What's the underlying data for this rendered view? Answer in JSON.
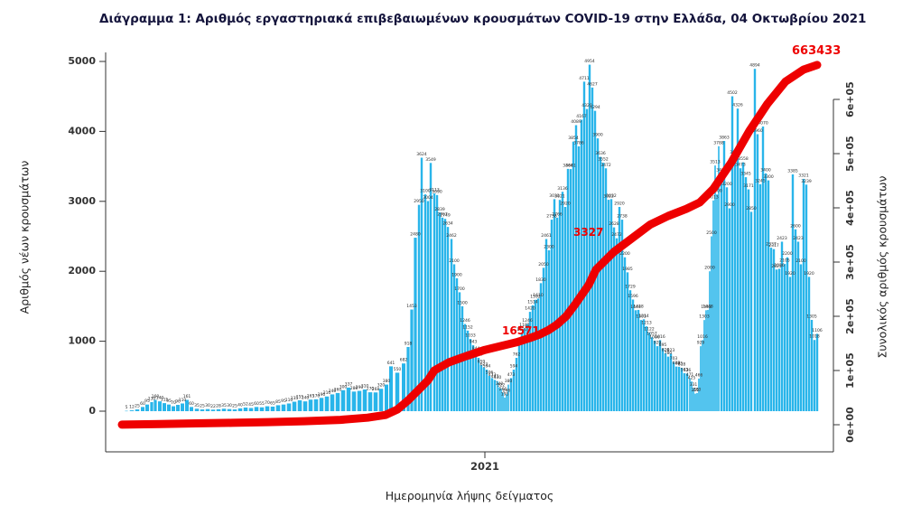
{
  "chart_data": {
    "type": "combo",
    "title": "Διάγραμμα 1: Αριθμός εργαστηριακά επιβεβαιωμένων κρουσμάτων COVID-19 στην Ελλάδα, 04 Οκτωβρίου 2021",
    "xlabel": "Ημερομηνία λήψης δείγματος",
    "x_ticks": [
      {
        "label": "2021",
        "x": 420
      }
    ],
    "x_domain": [
      0,
      788
    ],
    "grid": false,
    "left_axis": {
      "label": "Αριθμός νέων κρουσμάτων",
      "ticks": [
        0,
        1000,
        2000,
        3000,
        4000,
        5000
      ],
      "range": [
        0,
        5000
      ]
    },
    "right_axis": {
      "label": "Συνολικός αριθμός κρουσμάτων",
      "ticks": [
        {
          "label": "0e+00",
          "value": 0
        },
        {
          "label": "1e+05",
          "value": 100000
        },
        {
          "label": "2e+05",
          "value": 200000
        },
        {
          "label": "3e+05",
          "value": 300000
        },
        {
          "label": "4e+05",
          "value": 400000
        },
        {
          "label": "5e+05",
          "value": 500000
        },
        {
          "label": "6e+05",
          "value": 600000
        }
      ],
      "range": [
        0,
        600000
      ]
    },
    "series": [
      {
        "name": "daily-new-cases",
        "type": "bar",
        "axis": "left",
        "color": "#29b5ea",
        "sampling": "daily bars downsampled; values estimated from chart pixels",
        "points": [
          [
            23,
            5
          ],
          [
            29,
            12
          ],
          [
            35,
            25
          ],
          [
            41,
            60
          ],
          [
            46,
            95
          ],
          [
            51,
            130
          ],
          [
            55,
            160
          ],
          [
            60,
            140
          ],
          [
            65,
            115
          ],
          [
            70,
            95
          ],
          [
            75,
            70
          ],
          [
            80,
            90
          ],
          [
            85,
            110
          ],
          [
            90,
            161
          ],
          [
            95,
            60
          ],
          [
            101,
            35
          ],
          [
            107,
            25
          ],
          [
            113,
            30
          ],
          [
            119,
            22
          ],
          [
            125,
            28
          ],
          [
            131,
            35
          ],
          [
            137,
            30
          ],
          [
            143,
            25
          ],
          [
            149,
            40
          ],
          [
            155,
            52
          ],
          [
            161,
            45
          ],
          [
            167,
            60
          ],
          [
            173,
            55
          ],
          [
            179,
            70
          ],
          [
            185,
            65
          ],
          [
            191,
            85
          ],
          [
            197,
            95
          ],
          [
            203,
            110
          ],
          [
            209,
            135
          ],
          [
            215,
            155
          ],
          [
            221,
            140
          ],
          [
            227,
            165
          ],
          [
            233,
            170
          ],
          [
            239,
            190
          ],
          [
            245,
            210
          ],
          [
            251,
            240
          ],
          [
            257,
            260
          ],
          [
            263,
            300
          ],
          [
            269,
            337
          ],
          [
            275,
            280
          ],
          [
            281,
            290
          ],
          [
            287,
            310
          ],
          [
            293,
            270
          ],
          [
            299,
            268
          ],
          [
            305,
            320
          ],
          [
            311,
            380
          ],
          [
            316,
            641
          ],
          [
            323,
            550
          ],
          [
            330,
            682
          ],
          [
            335,
            918
          ],
          [
            339,
            1453
          ],
          [
            343,
            2480
          ],
          [
            347,
            2950
          ],
          [
            350,
            3624
          ],
          [
            354,
            3100
          ],
          [
            357,
            3004
          ],
          [
            360,
            3549
          ],
          [
            364,
            3113
          ],
          [
            367,
            3090
          ],
          [
            370,
            2839
          ],
          [
            373,
            2767
          ],
          [
            376,
            2749
          ],
          [
            379,
            2634
          ],
          [
            383,
            2462
          ],
          [
            386,
            2100
          ],
          [
            389,
            1900
          ],
          [
            392,
            1700
          ],
          [
            395,
            1500
          ],
          [
            398,
            1246
          ],
          [
            401,
            1152
          ],
          [
            404,
            1033
          ],
          [
            407,
            943
          ],
          [
            410,
            844
          ],
          [
            413,
            762
          ],
          [
            416,
            659
          ],
          [
            419,
            623
          ],
          [
            422,
            594
          ],
          [
            425,
            506
          ],
          [
            428,
            473
          ],
          [
            431,
            447
          ],
          [
            434,
            430
          ],
          [
            436,
            340
          ],
          [
            438,
            322
          ],
          [
            440,
            266
          ],
          [
            442,
            195
          ],
          [
            444,
            246
          ],
          [
            446,
            380
          ],
          [
            449,
            473
          ],
          [
            452,
            594
          ],
          [
            455,
            762
          ],
          [
            458,
            943
          ],
          [
            461,
            1120
          ],
          [
            464,
            1181
          ],
          [
            467,
            1246
          ],
          [
            470,
            1420
          ],
          [
            473,
            1514
          ],
          [
            476,
            1592
          ],
          [
            479,
            1610
          ],
          [
            482,
            1830
          ],
          [
            485,
            2050
          ],
          [
            488,
            2461
          ],
          [
            491,
            2300
          ],
          [
            494,
            2738
          ],
          [
            497,
            3031
          ],
          [
            500,
            2766
          ],
          [
            503,
            3021
          ],
          [
            506,
            3136
          ],
          [
            509,
            2920
          ],
          [
            512,
            3464
          ],
          [
            515,
            3461
          ],
          [
            518,
            3854
          ],
          [
            521,
            4089
          ],
          [
            524,
            3786
          ],
          [
            527,
            4167
          ],
          [
            530,
            4711
          ],
          [
            533,
            4320
          ],
          [
            536,
            4954
          ],
          [
            539,
            4627
          ],
          [
            542,
            4294
          ],
          [
            545,
            3900
          ],
          [
            548,
            3636
          ],
          [
            551,
            3552
          ],
          [
            554,
            3472
          ],
          [
            557,
            3022
          ],
          [
            560,
            3032
          ],
          [
            563,
            2628
          ],
          [
            566,
            2472
          ],
          [
            569,
            2920
          ],
          [
            572,
            2738
          ],
          [
            575,
            2200
          ],
          [
            578,
            1985
          ],
          [
            581,
            1729
          ],
          [
            584,
            1596
          ],
          [
            587,
            1443
          ],
          [
            590,
            1448
          ],
          [
            593,
            1303
          ],
          [
            596,
            1314
          ],
          [
            599,
            1213
          ],
          [
            602,
            1122
          ],
          [
            605,
            1057
          ],
          [
            608,
            1006
          ],
          [
            611,
            929
          ],
          [
            614,
            1016
          ],
          [
            617,
            895
          ],
          [
            620,
            826
          ],
          [
            623,
            780
          ],
          [
            626,
            823
          ],
          [
            629,
            703
          ],
          [
            632,
            638
          ],
          [
            635,
            635
          ],
          [
            638,
            618
          ],
          [
            641,
            543
          ],
          [
            644,
            536
          ],
          [
            647,
            471
          ],
          [
            649,
            425
          ],
          [
            651,
            331
          ],
          [
            653,
            251
          ],
          [
            655,
            260
          ],
          [
            657,
            466
          ],
          [
            659,
            929
          ],
          [
            661,
            1016
          ],
          [
            663,
            1303
          ],
          [
            665,
            1443
          ],
          [
            667,
            1448
          ],
          [
            669,
            2000
          ],
          [
            671,
            2500
          ],
          [
            673,
            3013
          ],
          [
            675,
            3513
          ],
          [
            677,
            3100
          ],
          [
            679,
            3788
          ],
          [
            682,
            3400
          ],
          [
            685,
            3863
          ],
          [
            688,
            3200
          ],
          [
            691,
            2900
          ],
          [
            694,
            4502
          ],
          [
            697,
            3650
          ],
          [
            700,
            4326
          ],
          [
            703,
            3473
          ],
          [
            706,
            3558
          ],
          [
            709,
            3345
          ],
          [
            712,
            3171
          ],
          [
            715,
            2850
          ],
          [
            719,
            4894
          ],
          [
            722,
            3960
          ],
          [
            725,
            3245
          ],
          [
            728,
            4070
          ],
          [
            731,
            3400
          ],
          [
            734,
            3300
          ],
          [
            737,
            2337
          ],
          [
            740,
            2317
          ],
          [
            743,
            2025
          ],
          [
            746,
            2036
          ],
          [
            749,
            2423
          ],
          [
            752,
            2105
          ],
          [
            755,
            2200
          ],
          [
            758,
            1920
          ],
          [
            761,
            3385
          ],
          [
            764,
            2600
          ],
          [
            767,
            2423
          ],
          [
            770,
            2100
          ],
          [
            773,
            3321
          ],
          [
            776,
            3239
          ],
          [
            779,
            1920
          ],
          [
            782,
            1305
          ],
          [
            785,
            1018
          ],
          [
            788,
            1106
          ]
        ]
      },
      {
        "name": "cumulative-cases",
        "type": "line",
        "axis": "right",
        "color": "#ee0000",
        "stroke_width": 9,
        "points": [
          [
            18,
            200
          ],
          [
            60,
            1200
          ],
          [
            100,
            2500
          ],
          [
            140,
            3500
          ],
          [
            180,
            4800
          ],
          [
            220,
            6500
          ],
          [
            260,
            9000
          ],
          [
            290,
            13000
          ],
          [
            310,
            18000
          ],
          [
            323,
            28000
          ],
          [
            335,
            45000
          ],
          [
            347,
            65000
          ],
          [
            357,
            82000
          ],
          [
            364,
            100000
          ],
          [
            380,
            115000
          ],
          [
            400,
            127000
          ],
          [
            420,
            138000
          ],
          [
            440,
            146000
          ],
          [
            455,
            152000
          ],
          [
            470,
            160000
          ],
          [
            480,
            166000
          ],
          [
            490,
            174000
          ],
          [
            500,
            185000
          ],
          [
            510,
            200000
          ],
          [
            520,
            222000
          ],
          [
            535,
            258000
          ],
          [
            543,
            286000
          ],
          [
            563,
            319000
          ],
          [
            583,
            344000
          ],
          [
            603,
            369000
          ],
          [
            623,
            385000
          ],
          [
            643,
            398000
          ],
          [
            658,
            410000
          ],
          [
            673,
            435000
          ],
          [
            693,
            484000
          ],
          [
            713,
            542000
          ],
          [
            733,
            592000
          ],
          [
            753,
            633000
          ],
          [
            773,
            655000
          ],
          [
            788,
            663433
          ]
        ]
      }
    ],
    "annotations": [
      {
        "text": "16571",
        "x": 439,
        "value": 167000,
        "color": "#ee0000",
        "size": 12
      },
      {
        "text": "3327",
        "x": 518,
        "value": 348000,
        "color": "#ee0000",
        "size": 12
      },
      {
        "text": "663433",
        "x": 760,
        "value": 683000,
        "color": "#ee0000",
        "size": 13
      }
    ],
    "bar_value_labels_visible": true
  },
  "colors": {
    "bar": "#29b5ea",
    "line": "#ee0000",
    "axis": "#333333",
    "tick_text": "#333333",
    "title_text": "#14143c",
    "bar_label_text": "#2b2b2b"
  }
}
